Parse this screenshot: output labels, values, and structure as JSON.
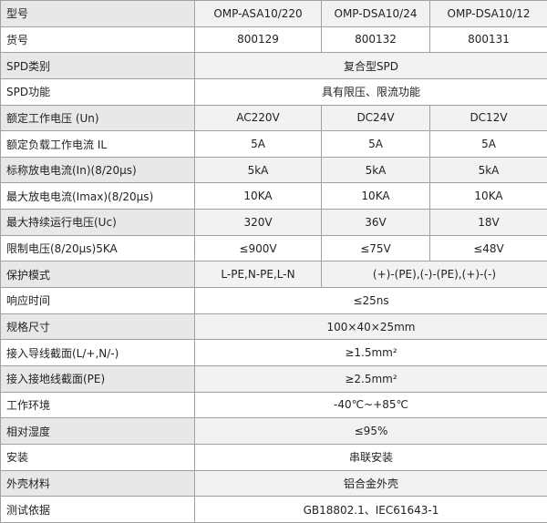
{
  "table": {
    "rows": [
      [
        "型号",
        "OMP-ASA10/220",
        "OMP-DSA10/24",
        "OMP-DSA10/12"
      ],
      [
        "货号",
        "800129",
        "800132",
        "800131"
      ],
      [
        "SPD类别",
        "复合型SPD"
      ],
      [
        "SPD功能",
        "具有限压、限流功能"
      ],
      [
        "额定工作电压 (Un)",
        "AC220V",
        "DC24V",
        "DC12V"
      ],
      [
        "额定负载工作电流 IL",
        "5A",
        "5A",
        "5A"
      ],
      [
        "标称放电电流(In)(8/20μs)",
        "5kA",
        "5kA",
        "5kA"
      ],
      [
        "最大放电电流(Imax)(8/20μs)",
        "10KA",
        "10KA",
        "10KA"
      ],
      [
        "最大持续运行电压(Uc)",
        "320V",
        "36V",
        "18V"
      ],
      [
        "限制电压(8/20μs)5KA",
        "≤900V",
        "≤75V",
        "≤48V"
      ],
      [
        "保护模式",
        "L-PE,N-PE,L-N",
        "(+)-(PE),(-)-(PE),(+)-(-)"
      ],
      [
        "响应时间",
        "≤25ns"
      ],
      [
        "规格尺寸",
        "100×40×25mm"
      ],
      [
        "接入导线截面(L/+,N/-)",
        "≥1.5mm²"
      ],
      [
        "接入接地线截面(PE)",
        "≥2.5mm²"
      ],
      [
        "工作环境",
        "-40℃~+85℃"
      ],
      [
        "相对湿度",
        "≤95%"
      ],
      [
        "安装",
        "串联安装"
      ],
      [
        "外壳材料",
        "铝合金外壳"
      ],
      [
        "测试依据",
        "GB18802.1、IEC61643-1"
      ]
    ]
  }
}
